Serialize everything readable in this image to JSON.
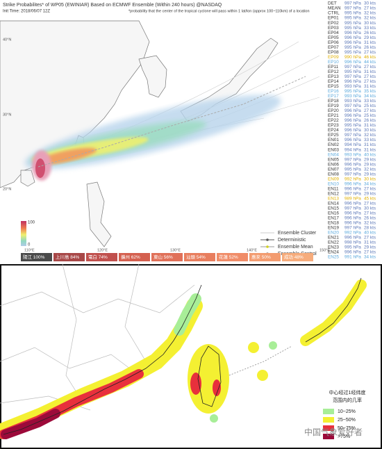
{
  "top": {
    "title": "Strike Probabilites* of WP05 (EWINIAR) Based on ECMWF Ensemble (Within 240 hours) @NASDAQ",
    "init_time": "Init Time: 2018/06/07 12Z",
    "note": "*probability that the center of the tropical cyclone will pass within 1 lat/lon (approx 100~110km) of a location",
    "lat_labels": [
      "40°N",
      "30°N",
      "20°N"
    ],
    "lon_labels": [
      "110°E",
      "120°E",
      "130°E",
      "140°E",
      "150°E"
    ],
    "colorbar": {
      "max": "100",
      "min": "0"
    },
    "legend": [
      "Ensemble Cluster",
      "Deterministic",
      "Ensemble Mean",
      "Ensemble Control"
    ],
    "locations": [
      {
        "label": "陽江 100%",
        "color": "#4a4a4a"
      },
      {
        "label": "上川島 84%",
        "color": "#a84848"
      },
      {
        "label": "電白 74%",
        "color": "#c0504d"
      },
      {
        "label": "擴州 62%",
        "color": "#d4604f"
      },
      {
        "label": "東山 56%",
        "color": "#e07058"
      },
      {
        "label": "汕頭 54%",
        "color": "#e87e5e"
      },
      {
        "label": "花蓮 52%",
        "color": "#f08c68"
      },
      {
        "label": "惠來 50%",
        "color": "#f39c70"
      },
      {
        "label": "成功 48%",
        "color": "#f6ac7c"
      }
    ],
    "members": [
      {
        "id": "DET",
        "pressure": "997 hPa",
        "wind": "30 kts"
      },
      {
        "id": "MEAN",
        "pressure": "997 hPa",
        "wind": "27 kts"
      },
      {
        "id": "CTRL",
        "pressure": "995 hPa",
        "wind": "32 kts"
      },
      {
        "id": "EP01",
        "pressure": "995 hPa",
        "wind": "32 kts"
      },
      {
        "id": "EP02",
        "pressure": "995 hPa",
        "wind": "30 kts"
      },
      {
        "id": "EP03",
        "pressure": "995 hPa",
        "wind": "33 kts"
      },
      {
        "id": "EP04",
        "pressure": "996 hPa",
        "wind": "26 kts"
      },
      {
        "id": "EP05",
        "pressure": "996 hPa",
        "wind": "29 kts"
      },
      {
        "id": "EP06",
        "pressure": "996 hPa",
        "wind": "31 kts"
      },
      {
        "id": "EP07",
        "pressure": "995 hPa",
        "wind": "26 kts"
      },
      {
        "id": "EP08",
        "pressure": "995 hPa",
        "wind": "27 kts"
      },
      {
        "id": "EP09",
        "pressure": "990 hPa",
        "wind": "46 kts",
        "color": "#e0b000"
      },
      {
        "id": "EP10",
        "pressure": "996 hPa",
        "wind": "44 kts",
        "color": "#5aa8dc"
      },
      {
        "id": "EP11",
        "pressure": "997 hPa",
        "wind": "27 kts"
      },
      {
        "id": "EP12",
        "pressure": "995 hPa",
        "wind": "31 kts"
      },
      {
        "id": "EP13",
        "pressure": "997 hPa",
        "wind": "27 kts"
      },
      {
        "id": "EP14",
        "pressure": "996 hPa",
        "wind": "27 kts"
      },
      {
        "id": "EP15",
        "pressure": "993 hPa",
        "wind": "31 kts"
      },
      {
        "id": "EP16",
        "pressure": "995 hPa",
        "wind": "35 kts",
        "color": "#5aa8dc"
      },
      {
        "id": "EP17",
        "pressure": "993 hPa",
        "wind": "34 kts",
        "color": "#5aa8dc"
      },
      {
        "id": "EP18",
        "pressure": "993 hPa",
        "wind": "33 kts"
      },
      {
        "id": "EP19",
        "pressure": "997 hPa",
        "wind": "25 kts"
      },
      {
        "id": "EP20",
        "pressure": "996 hPa",
        "wind": "27 kts"
      },
      {
        "id": "EP21",
        "pressure": "996 hPa",
        "wind": "25 kts"
      },
      {
        "id": "EP22",
        "pressure": "996 hPa",
        "wind": "26 kts"
      },
      {
        "id": "EP23",
        "pressure": "995 hPa",
        "wind": "31 kts"
      },
      {
        "id": "EP24",
        "pressure": "996 hPa",
        "wind": "30 kts"
      },
      {
        "id": "EP25",
        "pressure": "997 hPa",
        "wind": "32 kts"
      },
      {
        "id": "EN01",
        "pressure": "996 hPa",
        "wind": "33 kts"
      },
      {
        "id": "EN02",
        "pressure": "994 hPa",
        "wind": "31 kts"
      },
      {
        "id": "EN03",
        "pressure": "994 hPa",
        "wind": "31 kts"
      },
      {
        "id": "EN04",
        "pressure": "993 hPa",
        "wind": "40 kts",
        "color": "#5aa8dc"
      },
      {
        "id": "EN05",
        "pressure": "997 hPa",
        "wind": "29 kts"
      },
      {
        "id": "EN06",
        "pressure": "996 hPa",
        "wind": "29 kts"
      },
      {
        "id": "EN07",
        "pressure": "995 hPa",
        "wind": "32 kts"
      },
      {
        "id": "EN08",
        "pressure": "997 hPa",
        "wind": "29 kts"
      },
      {
        "id": "EN09",
        "pressure": "992 hPa",
        "wind": "30 kts",
        "color": "#e0b000"
      },
      {
        "id": "EN10",
        "pressure": "996 hPa",
        "wind": "34 kts",
        "color": "#5aa8dc"
      },
      {
        "id": "EN11",
        "pressure": "996 hPa",
        "wind": "27 kts"
      },
      {
        "id": "EN12",
        "pressure": "997 hPa",
        "wind": "29 kts"
      },
      {
        "id": "EN13",
        "pressure": "989 hPa",
        "wind": "45 kts",
        "color": "#e0b000"
      },
      {
        "id": "EN14",
        "pressure": "996 hPa",
        "wind": "27 kts"
      },
      {
        "id": "EN15",
        "pressure": "997 hPa",
        "wind": "30 kts"
      },
      {
        "id": "EN16",
        "pressure": "996 hPa",
        "wind": "27 kts"
      },
      {
        "id": "EN17",
        "pressure": "996 hPa",
        "wind": "26 kts"
      },
      {
        "id": "EN18",
        "pressure": "996 hPa",
        "wind": "32 kts"
      },
      {
        "id": "EN19",
        "pressure": "997 hPa",
        "wind": "28 kts"
      },
      {
        "id": "EN20",
        "pressure": "992 hPa",
        "wind": "40 kts",
        "color": "#5aa8dc"
      },
      {
        "id": "EN21",
        "pressure": "996 hPa",
        "wind": "27 kts"
      },
      {
        "id": "EN22",
        "pressure": "998 hPa",
        "wind": "31 kts"
      },
      {
        "id": "EN23",
        "pressure": "995 hPa",
        "wind": "29 kts"
      },
      {
        "id": "EN24",
        "pressure": "996 hPa",
        "wind": "27 kts"
      },
      {
        "id": "EN25",
        "pressure": "991 hPa",
        "wind": "34 kts",
        "color": "#5aa8dc"
      }
    ]
  },
  "bottom": {
    "legend_title": [
      "中心经过1经纬度",
      "范围内的几率"
    ],
    "legend": [
      {
        "label": "10~25%",
        "color": "#a8ee98"
      },
      {
        "label": "25~50%",
        "color": "#f4f032"
      },
      {
        "label": "50~75%",
        "color": "#e8303c"
      },
      {
        "label": ">75%",
        "color": "#9c0a3a"
      }
    ],
    "watermark": "中国气象爱好者"
  }
}
